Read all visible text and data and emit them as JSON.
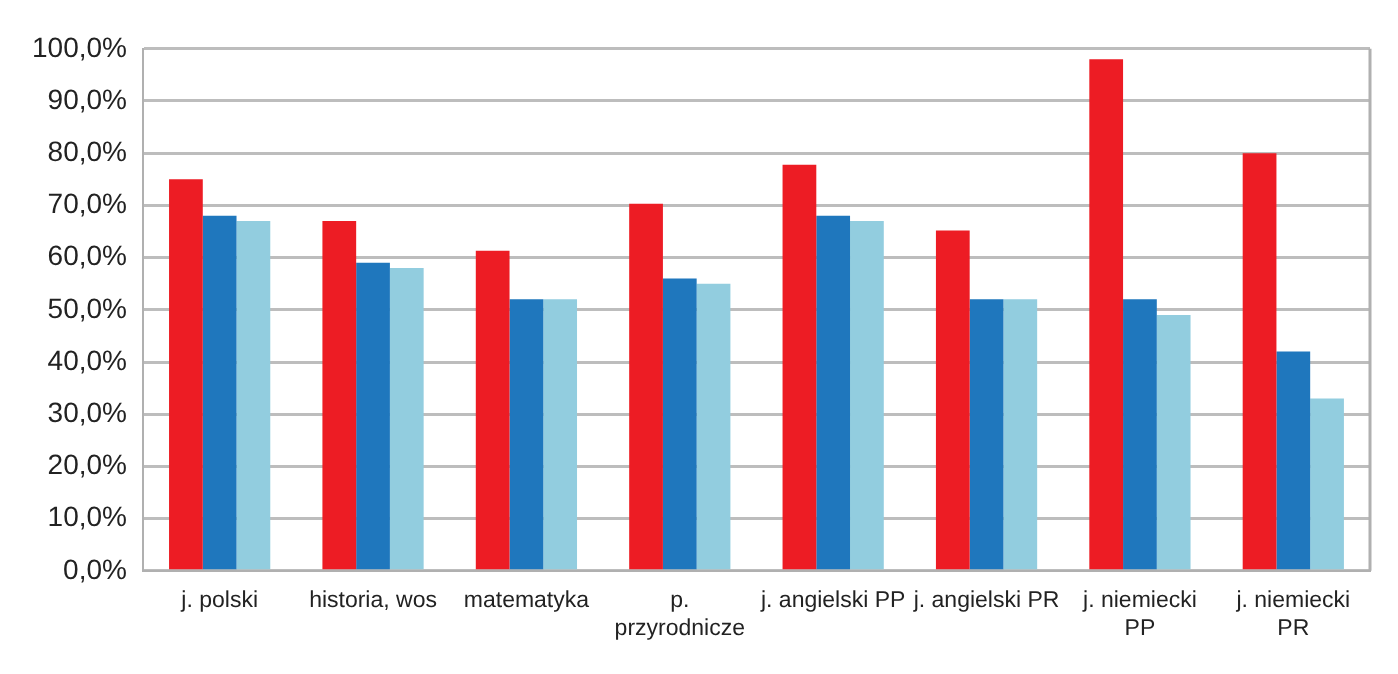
{
  "chart_data": {
    "type": "bar",
    "categories": [
      "j. polski",
      "historia, wos",
      "matematyka",
      "p.\nprzyrodnicze",
      "j. angielski PP",
      "j. angielski PR",
      "j. niemiecki\nPP",
      "j. niemiecki\nPR"
    ],
    "series": [
      {
        "color": "#ed1c24",
        "values": [
          75,
          67,
          61.3,
          70.3,
          77.8,
          65.2,
          98,
          80
        ]
      },
      {
        "color": "#1f77bd",
        "values": [
          68,
          59,
          52,
          56,
          68,
          52,
          52,
          42
        ]
      },
      {
        "color": "#92cddf",
        "values": [
          67,
          58,
          52,
          55,
          67,
          52,
          49,
          33
        ]
      }
    ],
    "ylim": [
      0,
      100
    ],
    "yticks": [
      {
        "value": 0,
        "label": "0,0%"
      },
      {
        "value": 10,
        "label": "10,0%"
      },
      {
        "value": 20,
        "label": "20,0%"
      },
      {
        "value": 30,
        "label": "30,0%"
      },
      {
        "value": 40,
        "label": "40,0%"
      },
      {
        "value": 50,
        "label": "50,0%"
      },
      {
        "value": 60,
        "label": "60,0%"
      },
      {
        "value": 70,
        "label": "70,0%"
      },
      {
        "value": 80,
        "label": "80,0%"
      },
      {
        "value": 90,
        "label": "90,0%"
      },
      {
        "value": 100,
        "label": "100,0%"
      }
    ],
    "grid": "y",
    "legend": false
  }
}
